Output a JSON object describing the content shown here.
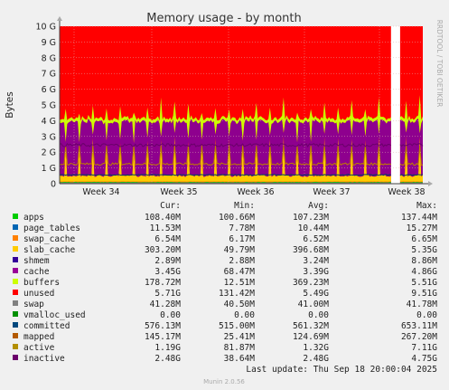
{
  "chart_data": {
    "type": "area",
    "title": "Memory usage - by month",
    "ylabel": "Bytes",
    "side_label": "RRDTOOL / TOBI OETIKER",
    "footer": "Munin 2.0.56",
    "last_update": "Last update: Thu Sep 18 20:00:04 2025",
    "ylim": [
      0,
      10
    ],
    "y_ticks": [
      "0",
      "1 G",
      "2 G",
      "3 G",
      "4 G",
      "5 G",
      "6 G",
      "7 G",
      "8 G",
      "9 G",
      "10 G"
    ],
    "x_ticks": [
      "Week 34",
      "Week 35",
      "Week 36",
      "Week 37",
      "Week 38"
    ],
    "grid": true,
    "colors": {
      "background": "#f0f0f0",
      "plot_bg": "#ffffff",
      "grid": "#e0b0b0",
      "unused": "#ff0000",
      "cache": "#8e008e",
      "buffers": "#ccff00",
      "slab_cache": "#ffcc00",
      "apps": "#00cc00",
      "swap": "#888888",
      "committed": "#004060",
      "active": "#c08000",
      "inactive": "#6a006a"
    },
    "stack_gb": {
      "apps": 0.11,
      "page_tables": 0.01,
      "swap_cache": 0.01,
      "slab_cache": 0.3,
      "shmem": 0.003,
      "cache": 3.45,
      "buffers": 0.18,
      "unused": 5.71
    },
    "gap_fraction": [
      0.915,
      0.935
    ],
    "columns": [
      "",
      "Cur:",
      "Min:",
      "Avg:",
      "Max:"
    ],
    "legend": [
      {
        "name": "apps",
        "color": "#00cc00",
        "cur": "108.40M",
        "min": "100.66M",
        "avg": "107.23M",
        "max": "137.44M"
      },
      {
        "name": "page_tables",
        "color": "#0066b3",
        "cur": "11.53M",
        "min": "7.78M",
        "avg": "10.44M",
        "max": "15.27M"
      },
      {
        "name": "swap_cache",
        "color": "#ff8000",
        "cur": "6.54M",
        "min": "6.17M",
        "avg": "6.52M",
        "max": "6.65M"
      },
      {
        "name": "slab_cache",
        "color": "#ffcc00",
        "cur": "303.20M",
        "min": "49.79M",
        "avg": "396.68M",
        "max": "5.35G"
      },
      {
        "name": "shmem",
        "color": "#330099",
        "cur": "2.89M",
        "min": "2.88M",
        "avg": "3.24M",
        "max": "8.86M"
      },
      {
        "name": "cache",
        "color": "#990099",
        "cur": "3.45G",
        "min": "68.47M",
        "avg": "3.39G",
        "max": "4.86G"
      },
      {
        "name": "buffers",
        "color": "#ccff00",
        "cur": "178.72M",
        "min": "12.51M",
        "avg": "369.23M",
        "max": "5.51G"
      },
      {
        "name": "unused",
        "color": "#ff0000",
        "cur": "5.71G",
        "min": "131.42M",
        "avg": "5.49G",
        "max": "9.51G"
      },
      {
        "name": "swap",
        "color": "#808080",
        "cur": "41.28M",
        "min": "40.50M",
        "avg": "41.00M",
        "max": "41.78M"
      },
      {
        "name": "vmalloc_used",
        "color": "#008f00",
        "cur": "0.00",
        "min": "0.00",
        "avg": "0.00",
        "max": "0.00"
      },
      {
        "name": "committed",
        "color": "#00487d",
        "cur": "576.13M",
        "min": "515.00M",
        "avg": "561.32M",
        "max": "653.11M"
      },
      {
        "name": "mapped",
        "color": "#b35a00",
        "cur": "145.17M",
        "min": "25.41M",
        "avg": "124.69M",
        "max": "267.20M"
      },
      {
        "name": "active",
        "color": "#b38f00",
        "cur": "1.19G",
        "min": "81.87M",
        "avg": "1.32G",
        "max": "7.11G"
      },
      {
        "name": "inactive",
        "color": "#6b006b",
        "cur": "2.48G",
        "min": "38.64M",
        "avg": "2.48G",
        "max": "4.75G"
      }
    ]
  }
}
